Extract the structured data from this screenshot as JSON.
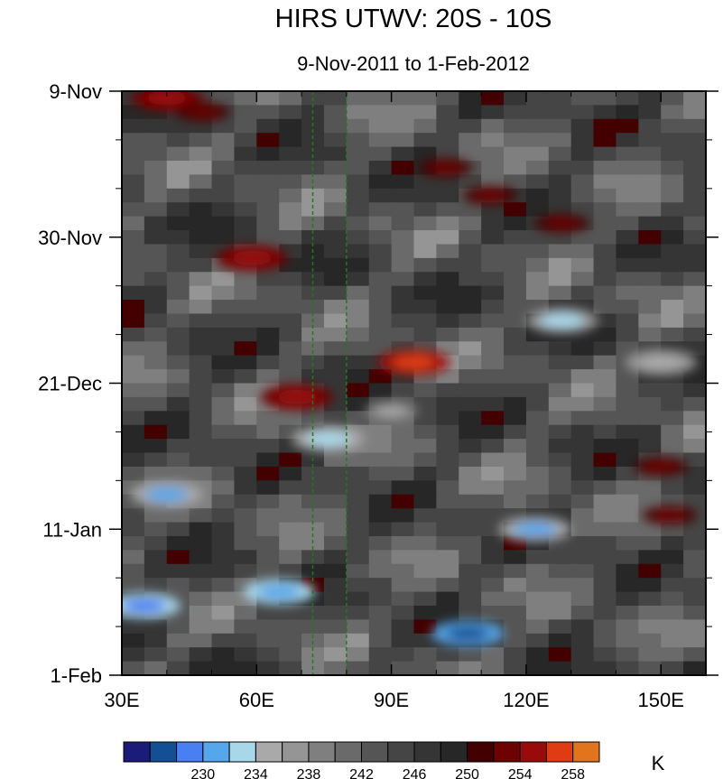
{
  "chart_data": {
    "type": "heatmap",
    "title": "HIRS UTWV: 20S - 10S",
    "subtitle": "9-Nov-2011 to 1-Feb-2012",
    "x_ticks": [
      {
        "value": 30,
        "label": "30E"
      },
      {
        "value": 60,
        "label": "60E"
      },
      {
        "value": 90,
        "label": "90E"
      },
      {
        "value": 120,
        "label": "120E"
      },
      {
        "value": 150,
        "label": "150E"
      }
    ],
    "x_range": [
      30,
      160
    ],
    "y_ticks": [
      {
        "value": 0,
        "label": "9-Nov"
      },
      {
        "value": 21,
        "label": "30-Nov"
      },
      {
        "value": 42,
        "label": "21-Dec"
      },
      {
        "value": 63,
        "label": "11-Jan"
      },
      {
        "value": 84,
        "label": "1-Feb"
      }
    ],
    "y_range": [
      0,
      84
    ],
    "reference_lines_lon": [
      72.5,
      80
    ],
    "colorbar": {
      "unit": "K",
      "labels": [
        "230",
        "234",
        "238",
        "242",
        "246",
        "250",
        "254",
        "258"
      ],
      "colors": [
        "#1b1c7a",
        "#124f95",
        "#4a7ef3",
        "#55a6ea",
        "#a8d7ea",
        "#a9a9a9",
        "#959595",
        "#7f7f7f",
        "#6a6a6a",
        "#555555",
        "#454545",
        "#353535",
        "#272727",
        "#420000",
        "#6d0000",
        "#9b0a0a",
        "#e03c14",
        "#e2741e"
      ]
    },
    "features": [
      {
        "lon": 40,
        "day": 1,
        "value": 256
      },
      {
        "lon": 48,
        "day": 3,
        "value": 255
      },
      {
        "lon": 102,
        "day": 11,
        "value": 255
      },
      {
        "lon": 112,
        "day": 15,
        "value": 255
      },
      {
        "lon": 128,
        "day": 19,
        "value": 255
      },
      {
        "lon": 59,
        "day": 24,
        "value": 256
      },
      {
        "lon": 95,
        "day": 39,
        "value": 258
      },
      {
        "lon": 69,
        "day": 44,
        "value": 256
      },
      {
        "lon": 150,
        "day": 54,
        "value": 255
      },
      {
        "lon": 152,
        "day": 61,
        "value": 255
      },
      {
        "lon": 107,
        "day": 78,
        "value": 229
      },
      {
        "lon": 35,
        "day": 74,
        "value": 231
      },
      {
        "lon": 65,
        "day": 72,
        "value": 232
      },
      {
        "lon": 122,
        "day": 63,
        "value": 233
      },
      {
        "lon": 40,
        "day": 58,
        "value": 233
      },
      {
        "lon": 150,
        "day": 39,
        "value": 236
      },
      {
        "lon": 128,
        "day": 33,
        "value": 235
      },
      {
        "lon": 76,
        "day": 50,
        "value": 234
      },
      {
        "lon": 90,
        "day": 46,
        "value": 237
      }
    ]
  }
}
